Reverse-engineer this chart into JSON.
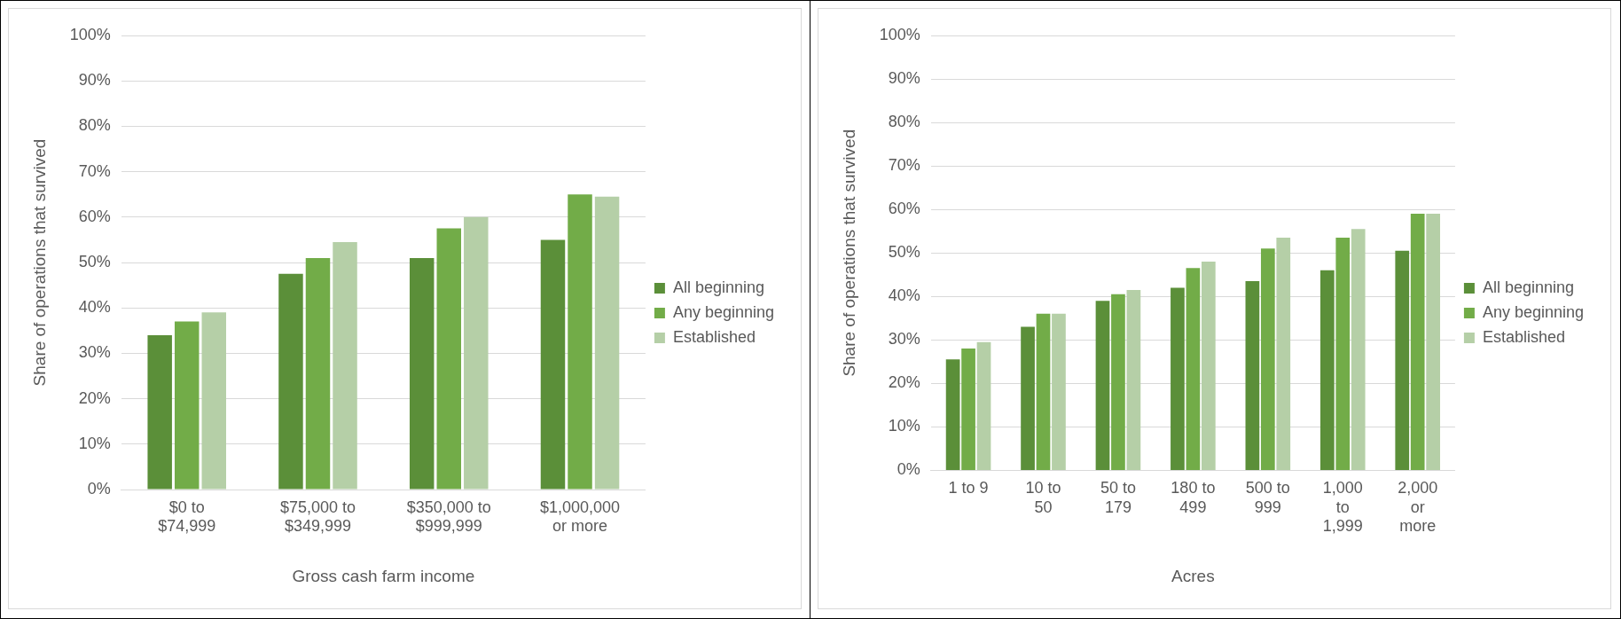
{
  "chart_data": [
    {
      "type": "bar",
      "xlabel": "Gross cash farm income",
      "ylabel": "Share of operations that survived",
      "categories": [
        "$0 to $74,999",
        "$75,000 to $349,999",
        "$350,000 to $999,999",
        "$1,000,000 or more"
      ],
      "series": [
        {
          "name": "All beginning",
          "color": "#5b8f39",
          "values": [
            34,
            47.5,
            51,
            55
          ]
        },
        {
          "name": "Any beginning",
          "color": "#72ac48",
          "values": [
            37,
            51,
            57.5,
            65
          ]
        },
        {
          "name": "Established",
          "color": "#b5cfa7",
          "values": [
            39,
            54.5,
            60,
            64.5
          ]
        }
      ],
      "ylim": [
        0,
        100
      ],
      "yticks": [
        {
          "value": 0,
          "label": "0%"
        },
        {
          "value": 10,
          "label": "10%"
        },
        {
          "value": 20,
          "label": "20%"
        },
        {
          "value": 30,
          "label": "30%"
        },
        {
          "value": 40,
          "label": "40%"
        },
        {
          "value": 50,
          "label": "50%"
        },
        {
          "value": 60,
          "label": "60%"
        },
        {
          "value": 70,
          "label": "70%"
        },
        {
          "value": 80,
          "label": "80%"
        },
        {
          "value": 90,
          "label": "90%"
        },
        {
          "value": 100,
          "label": "100%"
        }
      ],
      "grid": "y",
      "legend": "right"
    },
    {
      "type": "bar",
      "xlabel": "Acres",
      "ylabel": "Share of operations that survived",
      "categories": [
        "1 to 9",
        "10 to 50",
        "50 to 179",
        "180 to 499",
        "500 to 999",
        "1,000 to 1,999",
        "2,000 or more"
      ],
      "series": [
        {
          "name": "All beginning",
          "color": "#5b8f39",
          "values": [
            25.5,
            33,
            39,
            42,
            43.5,
            46,
            50.5
          ]
        },
        {
          "name": "Any beginning",
          "color": "#72ac48",
          "values": [
            28,
            36,
            40.5,
            46.5,
            51,
            53.5,
            59
          ]
        },
        {
          "name": "Established",
          "color": "#b5cfa7",
          "values": [
            29.5,
            36,
            41.5,
            48,
            53.5,
            55.5,
            59
          ]
        }
      ],
      "ylim": [
        0,
        100
      ],
      "yticks": [
        {
          "value": 0,
          "label": "0%"
        },
        {
          "value": 10,
          "label": "10%"
        },
        {
          "value": 20,
          "label": "20%"
        },
        {
          "value": 30,
          "label": "30%"
        },
        {
          "value": 40,
          "label": "40%"
        },
        {
          "value": 50,
          "label": "50%"
        },
        {
          "value": 60,
          "label": "60%"
        },
        {
          "value": 70,
          "label": "70%"
        },
        {
          "value": 80,
          "label": "80%"
        },
        {
          "value": 90,
          "label": "90%"
        },
        {
          "value": 100,
          "label": "100%"
        }
      ],
      "grid": "y",
      "legend": "right"
    }
  ]
}
